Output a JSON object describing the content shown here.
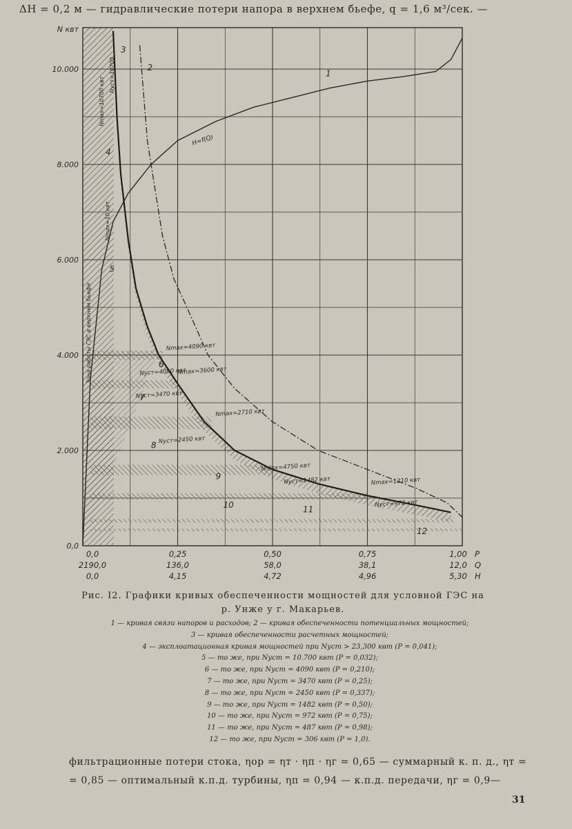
{
  "top_line": "ΔH = 0,2 м — гидравлические потери напора в верхнем бьефе,  q = 1,6 м³/сек. —",
  "chart_data": {
    "type": "line",
    "title": "",
    "ylabel": "N квт",
    "xlabel": "",
    "ylim": [
      0,
      11000
    ],
    "xlim": [
      0,
      1.0
    ],
    "x_axis_rows": [
      {
        "label": "P",
        "ticks": [
          "0,0",
          "0,25",
          "0,50",
          "0,75",
          "1,00"
        ]
      },
      {
        "label": "Q",
        "ticks": [
          "2190,0",
          "136,0",
          "58,0",
          "38,1",
          "12,0"
        ]
      },
      {
        "label": "H",
        "ticks": [
          "0,0",
          "4,15",
          "4,72",
          "4,96",
          "5,30"
        ]
      }
    ],
    "y_ticks": [
      "0,0",
      "2.000",
      "4.000",
      "6.000",
      "8.000",
      "10.000"
    ],
    "curve_labels": [
      "1",
      "2",
      "3",
      "4",
      "5",
      "6",
      "7",
      "8",
      "9",
      "10",
      "11",
      "12"
    ],
    "curve1_label": "H=f(Q)",
    "series": [
      {
        "name": "1",
        "x": [
          0.0,
          0.02,
          0.05,
          0.08,
          0.12,
          0.18,
          0.25,
          0.35,
          0.45,
          0.55,
          0.65,
          0.75,
          0.85,
          0.93,
          0.97,
          1.0
        ],
        "y": [
          0,
          3500,
          5800,
          6800,
          7400,
          8000,
          8500,
          8900,
          9200,
          9400,
          9600,
          9750,
          9850,
          9950,
          10200,
          10650
        ]
      },
      {
        "name": "2",
        "x": [
          0.15,
          0.16,
          0.17,
          0.19,
          0.21,
          0.24,
          0.28,
          0.33,
          0.4,
          0.5,
          0.62,
          0.75,
          0.88,
          0.96,
          1.0
        ],
        "y": [
          10500,
          9500,
          8500,
          7500,
          6500,
          5600,
          4900,
          4000,
          3300,
          2600,
          2000,
          1600,
          1200,
          900,
          600
        ]
      },
      {
        "name": "3",
        "x": [
          0.08,
          0.09,
          0.1,
          0.12,
          0.14,
          0.17,
          0.2,
          0.25,
          0.32,
          0.4,
          0.5,
          0.62,
          0.75,
          0.88,
          0.97
        ],
        "y": [
          10800,
          9000,
          7800,
          6400,
          5400,
          4600,
          4000,
          3400,
          2600,
          2000,
          1600,
          1300,
          1050,
          850,
          700
        ]
      }
    ],
    "annotations": [
      "Nmax=4090 квт",
      "Nуст=4090 квт",
      "Nmax=3600 квт",
      "Nуст=3470 квт",
      "Nmax=2710 квт",
      "Nуст=2450 квт",
      "Nmax=4750 квт",
      "Nуст=1482 квт",
      "Nmax=1210 квт",
      "Nуст=972 квт"
    ],
    "vertical_annotations": [
      "Nуст=10700",
      "Nmax=10700 квт",
      "Nmax=10 квт",
      "Зона работы ГЭС в верхнем бьефе"
    ]
  },
  "caption": {
    "line1": "Рис. I2. Графики кривых обеспеченности мощностей для условной ГЭС на",
    "line2": "р. Унже у г. Макарьев."
  },
  "legend": [
    "1 — кривая связи напоров и расходов; 2 — кривая обеспеченности потенциальных мощностей;",
    "3 — кривая обеспеченности расчетных мощностей;",
    "4 — эксплоатационная кривая мощностей при Nуст > 23,300 квт (P = 0,041);",
    "5 — то же, при Nуст = 10.700 квт (P = 0,032);",
    "6 — то же, при Nуст = 4090 квт (P = 0,210);",
    "7 — то же, при Nуст = 3470 квт (P = 0,25);",
    "8 — то же, при Nуст = 2450 квт (P = 0,337);",
    "9 — то же, при Nуст = 1482 квт (P = 0,50);",
    "10 — то же, при Nуст = 972 квт (P = 0,75);",
    "11 — то же, при Nуст = 487 квт (P = 0,98);",
    "12 — то же, при Nуст = 306 квт (P = 1,0)."
  ],
  "body": {
    "line1": "фильтрационные потери стока, ηор = ηт · ηп · ηг = 0,65 — суммарный к. п. д., ηт =",
    "line2": "= 0,85 — оптимальный к.п.д. турбины, ηп = 0,94 — к.п.д. передачи, ηг = 0,9—"
  },
  "page_number": "31"
}
